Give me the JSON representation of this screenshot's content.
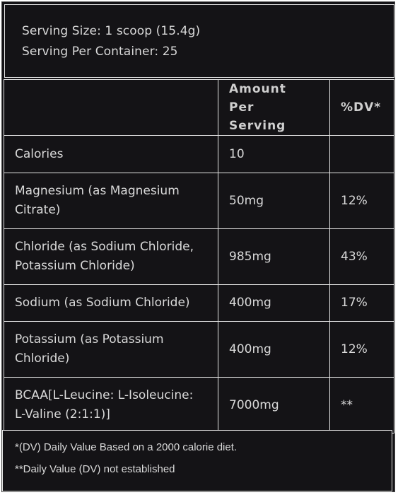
{
  "serving": {
    "size": "Serving Size: 1 scoop (15.4g)",
    "per_container": "Serving Per Container: 25"
  },
  "table": {
    "headers": [
      "",
      "Amount Per Serving",
      "%DV*"
    ],
    "rows": [
      {
        "nutrient": "Calories",
        "amount": "10",
        "dv": ""
      },
      {
        "nutrient": "Magnesium (as Magnesium Citrate)",
        "amount": "50mg",
        "dv": "12%"
      },
      {
        "nutrient": "Chloride (as Sodium Chloride, Potassium Chloride)",
        "amount": "985mg",
        "dv": "43%"
      },
      {
        "nutrient": "Sodium (as Sodium Chloride)",
        "amount": "400mg",
        "dv": "17%"
      },
      {
        "nutrient": "Potassium (as Potassium Chloride)",
        "amount": "400mg",
        "dv": "12%"
      },
      {
        "nutrient": "BCAA[L-Leucine: L-Isoleucine: L-Valine (2:1:1)]",
        "amount": "7000mg",
        "dv": "**"
      }
    ]
  },
  "footnotes": [
    "*(DV) Daily Value Based on a 2000 calorie diet.",
    "**Daily Value (DV) not established"
  ],
  "colors": {
    "background": "#141316",
    "border": "#e6e6e6",
    "text": "#d9d9d9"
  }
}
